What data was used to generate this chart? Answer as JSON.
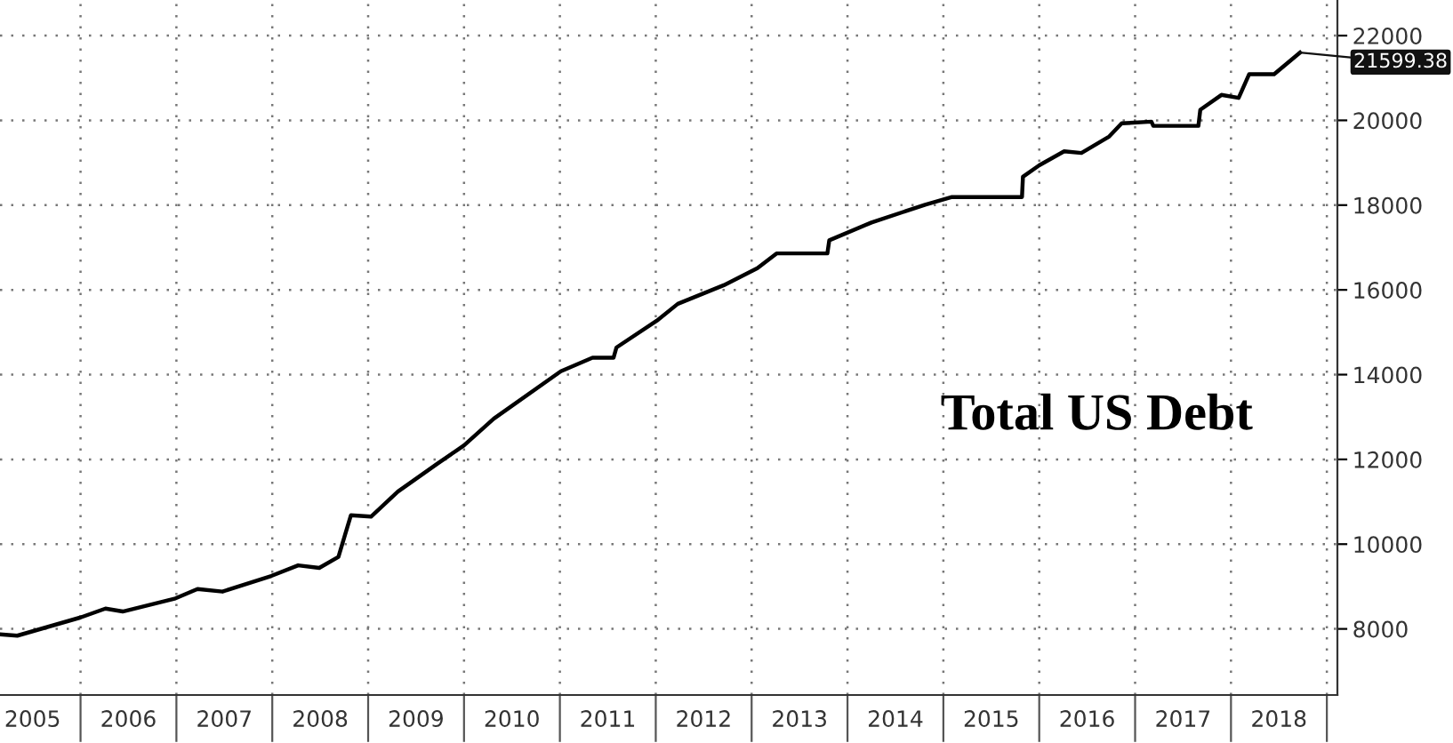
{
  "chart_data": {
    "type": "line",
    "title": "Total US Debt",
    "x": [
      2005.16,
      2005.34,
      2006.0,
      2006.26,
      2006.44,
      2006.99,
      2007.22,
      2007.48,
      2007.99,
      2008.27,
      2008.49,
      2008.69,
      2008.76,
      2008.82,
      2009.03,
      2009.31,
      2009.73,
      2010.0,
      2010.31,
      2011.01,
      2011.34,
      2011.56,
      2011.59,
      2012.01,
      2012.23,
      2012.71,
      2013.06,
      2013.26,
      2013.79,
      2013.81,
      2014.25,
      2014.81,
      2015.09,
      2015.82,
      2015.83,
      2016.0,
      2016.26,
      2016.44,
      2016.73,
      2016.86,
      2017.17,
      2017.19,
      2017.66,
      2017.68,
      2017.9,
      2018.08,
      2018.19,
      2018.45,
      2018.72
    ],
    "series": [
      {
        "color": "#000000",
        "values": [
          7870,
          7840,
          8270,
          8480,
          8410,
          8720,
          8940,
          8880,
          9250,
          9500,
          9440,
          9700,
          10230,
          10680,
          10650,
          11240,
          11910,
          12330,
          12960,
          14080,
          14400,
          14400,
          14640,
          15270,
          15670,
          16110,
          16510,
          16860,
          16860,
          17170,
          17590,
          18010,
          18190,
          18190,
          18670,
          18940,
          19270,
          19230,
          19620,
          19930,
          19970,
          19870,
          19870,
          20250,
          20600,
          20530,
          21090,
          21090,
          21599.38
        ]
      }
    ],
    "annotations": [
      {
        "text": "21599.38",
        "x": 2018.72,
        "y": 21599.38
      }
    ],
    "xlim": [
      2005.16,
      2019.11
    ],
    "xticks": [
      {
        "value": 2005.5,
        "label": "2005"
      },
      {
        "value": 2006,
        "label": null
      },
      {
        "value": 2006.5,
        "label": "2006"
      },
      {
        "value": 2007,
        "label": null
      },
      {
        "value": 2007.5,
        "label": "2007"
      },
      {
        "value": 2008,
        "label": null
      },
      {
        "value": 2008.5,
        "label": "2008"
      },
      {
        "value": 2009,
        "label": null
      },
      {
        "value": 2009.5,
        "label": "2009"
      },
      {
        "value": 2010,
        "label": null
      },
      {
        "value": 2010.5,
        "label": "2010"
      },
      {
        "value": 2011,
        "label": null
      },
      {
        "value": 2011.5,
        "label": "2011"
      },
      {
        "value": 2012,
        "label": null
      },
      {
        "value": 2012.5,
        "label": "2012"
      },
      {
        "value": 2013,
        "label": null
      },
      {
        "value": 2013.5,
        "label": "2013"
      },
      {
        "value": 2014,
        "label": null
      },
      {
        "value": 2014.5,
        "label": "2014"
      },
      {
        "value": 2015,
        "label": null
      },
      {
        "value": 2015.5,
        "label": "2015"
      },
      {
        "value": 2016,
        "label": null
      },
      {
        "value": 2016.5,
        "label": "2016"
      },
      {
        "value": 2017,
        "label": null
      },
      {
        "value": 2017.5,
        "label": "2017"
      },
      {
        "value": 2018,
        "label": null
      },
      {
        "value": 2018.5,
        "label": "2018"
      },
      {
        "value": 2019,
        "label": null
      }
    ],
    "ylim": [
      6440,
      22840
    ],
    "yticks": [
      8000,
      10000,
      12000,
      14000,
      16000,
      18000,
      20000,
      22000
    ],
    "grid": true,
    "marker": "none",
    "line_style": "solid",
    "legend": false
  }
}
